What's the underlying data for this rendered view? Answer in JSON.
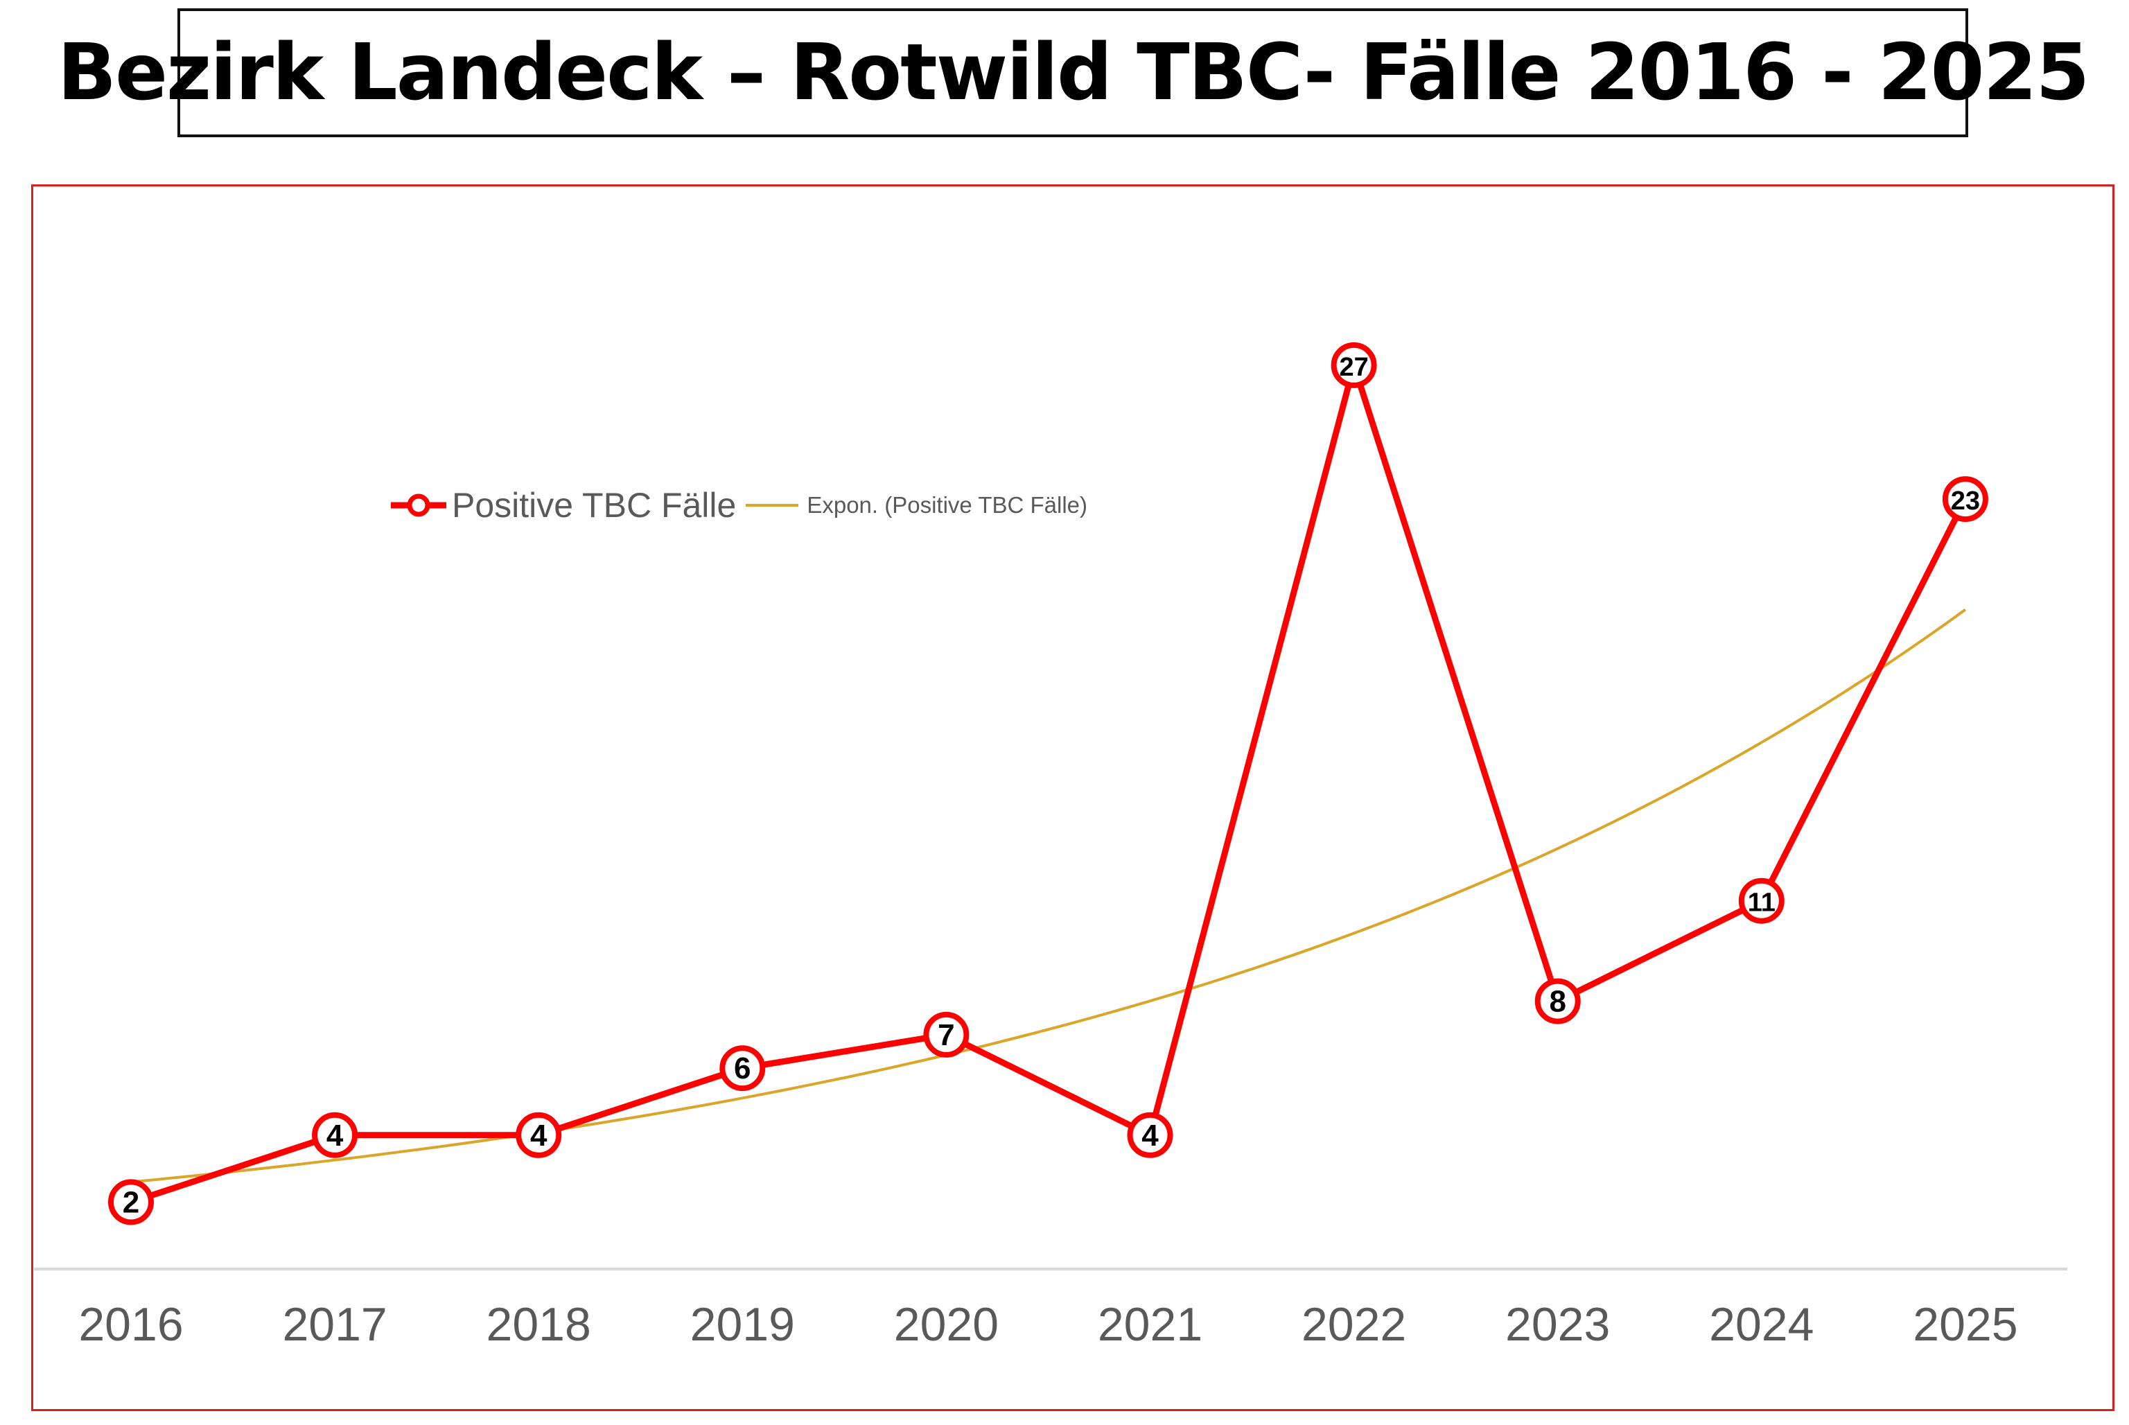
{
  "title": "Bezirk Landeck – Rotwild TBC- Fälle 2016 - 2025",
  "legend": {
    "series_label": "Positive TBC Fälle",
    "trend_label": "Expon. (Positive TBC Fälle)"
  },
  "colors": {
    "series": "#ff0000",
    "trend": "#d9a62a",
    "frame": "#d9201e",
    "axis_text": "#595959",
    "baseline": "#d9d9d9"
  },
  "x_ticks": [
    "2016",
    "2017",
    "2018",
    "2019",
    "2020",
    "2021",
    "2022",
    "2023",
    "2024",
    "2025"
  ],
  "data_labels": [
    "2",
    "4",
    "4",
    "6",
    "7",
    "4",
    "27",
    "8",
    "11",
    "23"
  ],
  "chart_data": {
    "type": "line",
    "title": "Bezirk Landeck – Rotwild TBC- Fälle 2016 - 2025",
    "categories": [
      "2016",
      "2017",
      "2018",
      "2019",
      "2020",
      "2021",
      "2022",
      "2023",
      "2024",
      "2025"
    ],
    "series": [
      {
        "name": "Positive TBC Fälle",
        "values": [
          2,
          4,
          4,
          6,
          7,
          4,
          27,
          8,
          11,
          23
        ],
        "color": "#ff0000",
        "markers": "circle",
        "data_labels": true
      },
      {
        "name": "Expon. (Positive TBC Fälle)",
        "type": "exponential_trendline",
        "values": [
          2.6,
          3.2,
          4.1,
          5.2,
          6.6,
          8.2,
          10.4,
          13.1,
          16.6,
          19.7
        ],
        "color": "#d9a62a"
      }
    ],
    "xlabel": "",
    "ylabel": "",
    "ylim": [
      0,
      30
    ],
    "grid": false,
    "y_axis_visible": false,
    "legend_position": "top-left inside plot"
  }
}
